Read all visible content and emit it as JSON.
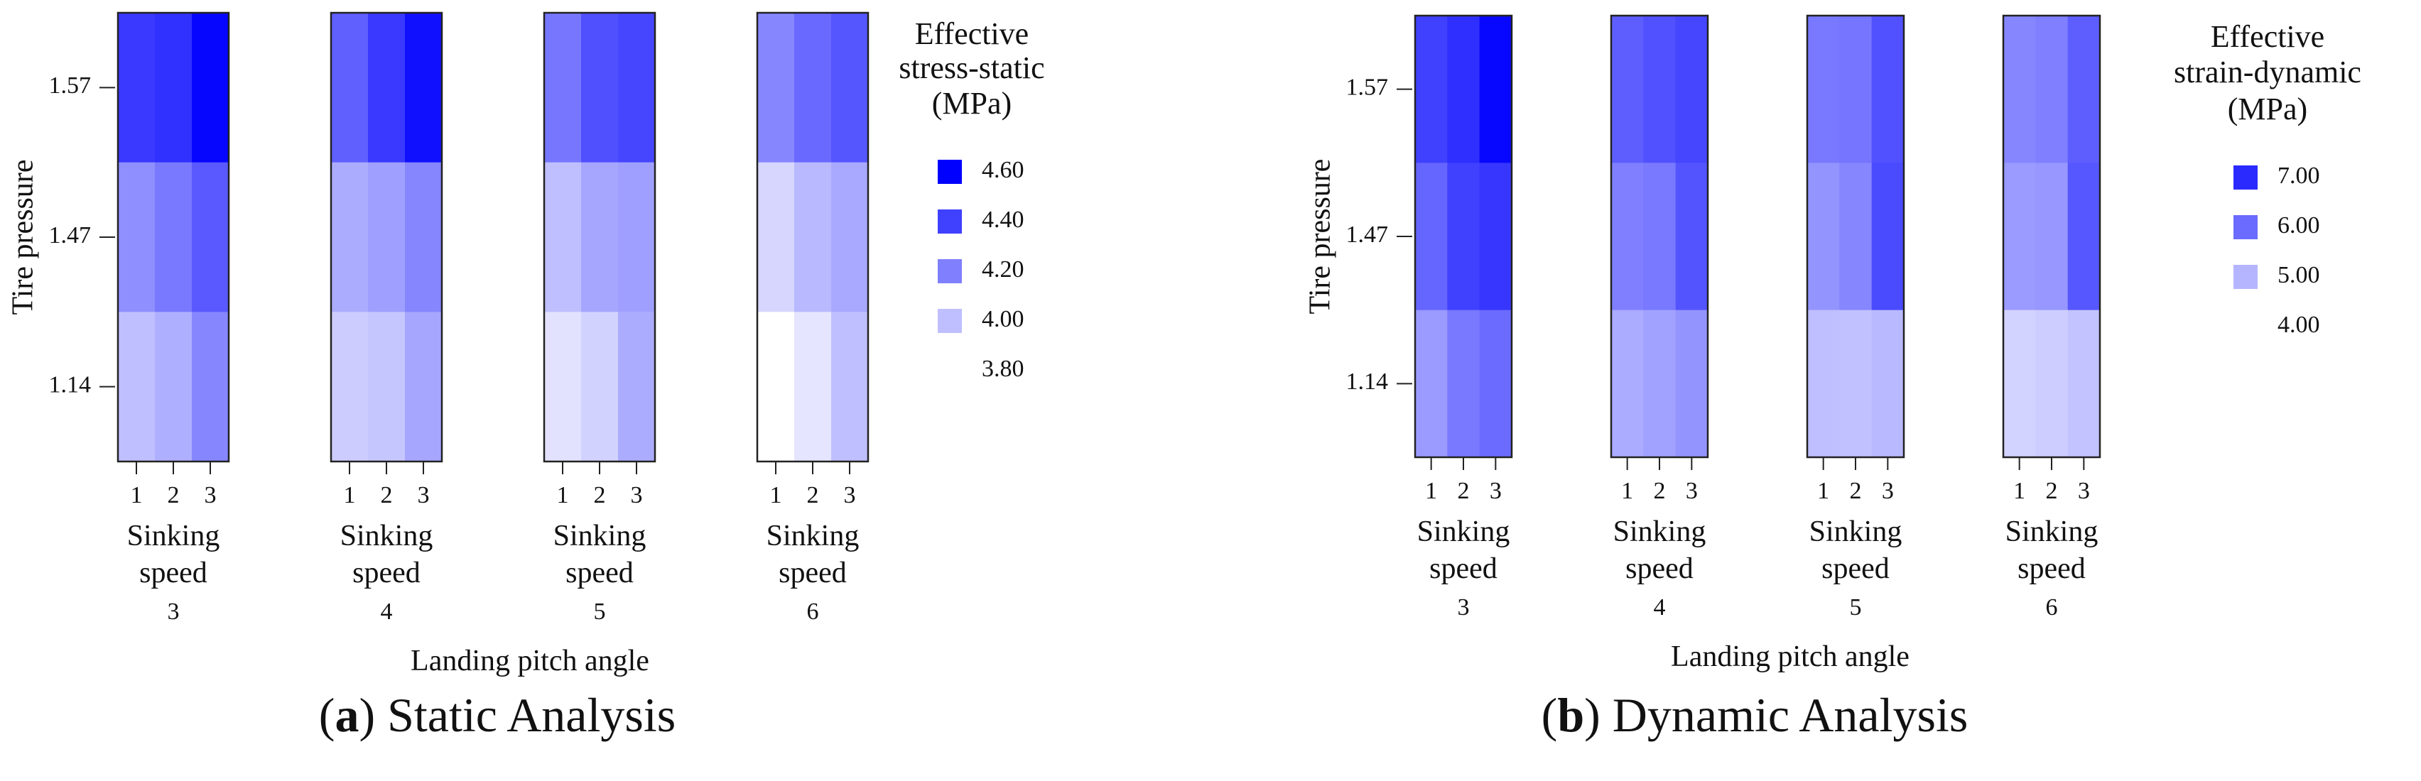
{
  "chart_data": [
    {
      "type": "heatmap",
      "caption_letter": "a",
      "caption_text": "Static Analysis",
      "ylabel": "Tire pressure",
      "xlabel": "Landing pitch angle",
      "panel_xlabel": "Sinking speed",
      "y_categories": [
        "1.57",
        "1.47",
        "1.14"
      ],
      "x_categories": [
        "1",
        "2",
        "3"
      ],
      "panels": [
        {
          "label": "3",
          "values": [
            [
              4.42,
              4.45,
              4.58
            ],
            [
              4.15,
              4.22,
              4.32
            ],
            [
              4.0,
              4.05,
              4.18
            ]
          ]
        },
        {
          "label": "4",
          "values": [
            [
              4.3,
              4.42,
              4.55
            ],
            [
              4.06,
              4.1,
              4.18
            ],
            [
              3.96,
              3.98,
              4.08
            ]
          ]
        },
        {
          "label": "5",
          "values": [
            [
              4.23,
              4.35,
              4.38
            ],
            [
              4.0,
              4.08,
              4.1
            ],
            [
              3.89,
              3.94,
              4.06
            ]
          ]
        },
        {
          "label": "6",
          "values": [
            [
              4.18,
              4.27,
              4.33
            ],
            [
              3.93,
              4.02,
              4.07
            ],
            [
              3.8,
              3.88,
              4.0
            ]
          ]
        }
      ],
      "colorscale": {
        "min": 3.8,
        "max": 4.6,
        "low_color": "#ffffff",
        "high_color": "#0000ff"
      },
      "legend": {
        "title": [
          "Effective",
          "stress-static",
          "(MPa)"
        ],
        "entries": [
          {
            "label": "4.60",
            "color": "#0000ff"
          },
          {
            "label": "4.40",
            "color": "#4040ff"
          },
          {
            "label": "4.20",
            "color": "#8080ff"
          },
          {
            "label": "4.00",
            "color": "#bfbfff"
          },
          {
            "label": "3.80",
            "color": "#ffffff"
          }
        ]
      }
    },
    {
      "type": "heatmap",
      "caption_letter": "b",
      "caption_text": "Dynamic Analysis",
      "ylabel": "Tire pressure",
      "xlabel": "Landing pitch angle",
      "panel_xlabel": "Sinking speed",
      "y_categories": [
        "1.57",
        "1.47",
        "1.14"
      ],
      "x_categories": [
        "1",
        "2",
        "3"
      ],
      "panels": [
        {
          "label": "3",
          "values": [
            [
              6.85,
              7.1,
              7.7
            ],
            [
              6.3,
              6.85,
              7.0
            ],
            [
              5.5,
              6.0,
              6.2
            ]
          ]
        },
        {
          "label": "4",
          "values": [
            [
              6.4,
              6.6,
              6.75
            ],
            [
              5.9,
              6.0,
              6.55
            ],
            [
              5.25,
              5.4,
              5.6
            ]
          ]
        },
        {
          "label": "5",
          "values": [
            [
              6.0,
              6.05,
              6.6
            ],
            [
              5.6,
              5.8,
              6.7
            ],
            [
              4.95,
              4.92,
              5.05
            ]
          ]
        },
        {
          "label": "6",
          "values": [
            [
              5.8,
              5.9,
              6.4
            ],
            [
              5.5,
              5.55,
              6.5
            ],
            [
              4.65,
              4.75,
              4.9
            ]
          ]
        }
      ],
      "colorscale": {
        "min": 4.0,
        "max": 7.8,
        "low_color": "#ffffff",
        "high_color": "#0000ff"
      },
      "legend": {
        "title": [
          "Effective",
          "strain-dynamic",
          "(MPa)"
        ],
        "entries": [
          {
            "label": "7.00",
            "color": "#2a2aff"
          },
          {
            "label": "6.00",
            "color": "#6b6bff"
          },
          {
            "label": "5.00",
            "color": "#b5b5ff"
          },
          {
            "label": "4.00",
            "color": "#ffffff"
          }
        ]
      }
    }
  ]
}
